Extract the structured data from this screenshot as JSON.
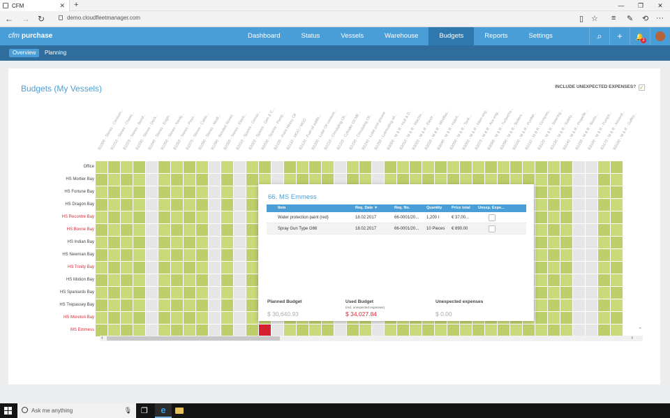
{
  "browser": {
    "tab_title": "CFM",
    "url": "demo.cloudfleetmanager.com",
    "new_tab_glyph": "+",
    "close_glyph": "✕",
    "back_glyph": "←",
    "forward_glyph": "→",
    "refresh_glyph": "↻",
    "minimize_glyph": "—",
    "maximize_glyph": "❐",
    "window_close_glyph": "✕",
    "reading_view_glyph": "▯",
    "favorite_glyph": "☆",
    "hub_glyph": "≡",
    "note_glyph": "✎",
    "share_glyph": "⟲",
    "more_glyph": "···"
  },
  "app": {
    "brand_light": "cfm",
    "brand_bold": "purchase",
    "nav": [
      "Dashboard",
      "Status",
      "Vessels",
      "Warehouse",
      "Budgets",
      "Reports",
      "Settings"
    ],
    "active_nav": "Budgets",
    "search_glyph": "⌕",
    "add_glyph": "+",
    "bell_glyph": "🔔",
    "notification_count": "2",
    "subnav": [
      "Overview",
      "Planning"
    ]
  },
  "page": {
    "title": "Budgets (My Vessels)",
    "include_unexpected_label": "INCLUDE UNEXPECTED EXPENSES?",
    "include_unexpected_checked": "✓",
    "scroll_left": "‹",
    "scroll_right": "›",
    "scroll_down": "⌄"
  },
  "grid": {
    "columns": [
      "B1000 - Stores - Consum...",
      "B1010 - Stores - Chemi...",
      "B1020 - Stores - Bond...",
      "B1030 - Stores - Deck...",
      "B1040 - Stores - Engin...",
      "B1050 - Stores - Navig...",
      "B1060 - Stores - Provi...",
      "B1070 - Stores - Cabin...",
      "B1080 - Stores - Medi...",
      "B1090 - Bonded Stores",
      "B2000 - Stores - Electr...",
      "B2010 - Spares - Consu...",
      "B2020 - Spares - Gen & C...",
      "B2030 - Spares - Pump...",
      "B2100 - Paint Heavy Oil",
      "B2110 - MGO / MDO",
      "B2120 - Fuel oil additi...",
      "B2200 - Lube Oil consum...",
      "B2210 - Circulating Oil...",
      "B2220 - Cylinder Oil ME...",
      "B2230 - Circulating Oil...",
      "B2240 - Lube and grease",
      "B2250 - Lubricating oil...",
      "B3000 - M & R - Hull & D...",
      "B3010 - M & R - Machin...",
      "B3020 - M & R - Electr...",
      "B3030 - M & R - Windlas...",
      "B3040 - M & R - Hatch...",
      "B3050 - M & R - Tank...",
      "B3060 - M & R - Main eng...",
      "B3070 - M & R - Aux eng...",
      "B3080 - M & R - Turbocha...",
      "B3090 - M & R - Boilers...",
      "B3100 - M & R - Purifier...",
      "B3110 - M & R - Compres...",
      "B3120 - M & R - Steering...",
      "B3130 - M & R - Safety...",
      "B3140 - M & R - Propelle...",
      "B3150 - M & R - Boats...",
      "B3160 - M & R - Pumps...",
      "B3170 - M & R - Aircond...",
      "B3180 - M & R - Galley..."
    ],
    "vessels": [
      {
        "name": "Office",
        "over_budget": false
      },
      {
        "name": "HS Mortier Bay",
        "over_budget": false
      },
      {
        "name": "HS Fortune Bay",
        "over_budget": false
      },
      {
        "name": "HS Dragon Bay",
        "over_budget": false
      },
      {
        "name": "HS Recontre Bay",
        "over_budget": true
      },
      {
        "name": "HS Bonne Bay",
        "over_budget": true
      },
      {
        "name": "HS Indian Bay",
        "over_budget": false
      },
      {
        "name": "HS Newman Bay",
        "over_budget": false
      },
      {
        "name": "HS Trinity Bay",
        "over_budget": true
      },
      {
        "name": "HS Motion Bay",
        "over_budget": false
      },
      {
        "name": "HS Spaniards Bay",
        "over_budget": false
      },
      {
        "name": "HS Trepassey Bay",
        "over_budget": false
      },
      {
        "name": "HS Moreton Bay",
        "over_budget": true
      },
      {
        "name": "MS Emmess",
        "over_budget": true
      }
    ],
    "colors": {
      "ok": "#c9da7a",
      "ok_dark": "#bccf6a",
      "empty": "#e6e6e6",
      "over": "#d6202f"
    }
  },
  "popup": {
    "title": "66. MS Emmess",
    "headers": [
      "Item",
      "Req. Date ▼",
      "Req. No.",
      "Quantity",
      "Price total",
      "Unexp. Expe..."
    ],
    "rows": [
      {
        "item": "Water protection paint (red)",
        "date": "18.02.2017",
        "req_no": "66-0001/20...",
        "qty": "1,200 l",
        "price": "€ 37,00..."
      },
      {
        "item": "Spray Gun Type G66",
        "date": "18.02.2017",
        "req_no": "66-0001/20...",
        "qty": "10 Pieces",
        "price": "€ 890.00"
      }
    ],
    "planned_label": "Planned Budget",
    "planned_value": "$ 30,640.93",
    "used_label": "Used Budget",
    "used_sub": "(incl. unexpected expenses)",
    "used_value": "$ 34,027.84",
    "unexpected_label": "Unexpected expenses",
    "unexpected_value": "$ 0.00"
  },
  "taskbar": {
    "search_placeholder": "Ask me anything",
    "mic_glyph": "🎙",
    "taskview_glyph": "❐",
    "edge_glyph": "e"
  }
}
